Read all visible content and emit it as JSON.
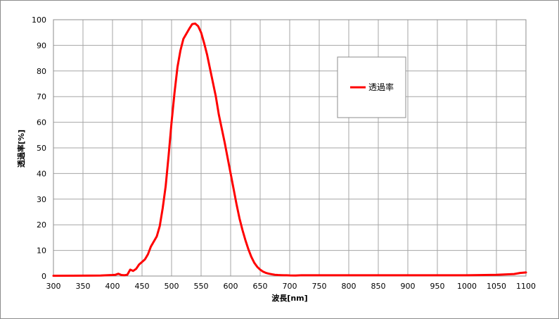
{
  "chart_data": {
    "type": "line",
    "title": "",
    "xlabel": "波長[nm]",
    "ylabel": "透過率[%]",
    "xlim": [
      300,
      1100
    ],
    "ylim": [
      0,
      100
    ],
    "xticks": [
      300,
      350,
      400,
      450,
      500,
      550,
      600,
      650,
      700,
      750,
      800,
      850,
      900,
      950,
      1000,
      1050,
      1100
    ],
    "yticks": [
      0,
      10,
      20,
      30,
      40,
      50,
      60,
      70,
      80,
      90,
      100
    ],
    "grid": true,
    "legend_position": "top-right",
    "series": [
      {
        "name": "透過率",
        "color": "#ff0000",
        "x": [
          300,
          380,
          390,
          400,
          405,
          410,
          415,
          420,
          425,
          430,
          435,
          440,
          445,
          450,
          455,
          460,
          465,
          470,
          475,
          480,
          485,
          490,
          495,
          500,
          505,
          510,
          515,
          520,
          525,
          530,
          535,
          540,
          545,
          550,
          555,
          560,
          565,
          570,
          575,
          580,
          585,
          590,
          595,
          600,
          605,
          610,
          615,
          620,
          625,
          630,
          635,
          640,
          645,
          650,
          655,
          660,
          665,
          670,
          675,
          680,
          685,
          690,
          695,
          700,
          710,
          720,
          750,
          800,
          850,
          900,
          950,
          1000,
          1050,
          1080,
          1090,
          1100
        ],
        "values": [
          0.1,
          0.2,
          0.3,
          0.4,
          0.5,
          0.9,
          0.4,
          0.3,
          0.5,
          2.5,
          2.0,
          2.8,
          4.5,
          5.5,
          6.5,
          8.5,
          11.5,
          13.5,
          15.5,
          19.5,
          26.5,
          35.0,
          47.0,
          60.0,
          71.5,
          81.5,
          88.0,
          92.5,
          94.5,
          96.5,
          98.3,
          98.5,
          97.5,
          95.0,
          91.0,
          86.5,
          81.0,
          75.5,
          70.0,
          63.0,
          57.5,
          52.0,
          46.0,
          40.0,
          34.0,
          28.0,
          22.5,
          18.0,
          14.0,
          10.5,
          7.5,
          5.2,
          3.6,
          2.5,
          1.7,
          1.2,
          0.9,
          0.7,
          0.5,
          0.4,
          0.35,
          0.3,
          0.3,
          0.25,
          0.2,
          0.3,
          0.3,
          0.3,
          0.3,
          0.3,
          0.3,
          0.3,
          0.5,
          0.8,
          1.2,
          1.4
        ]
      }
    ]
  }
}
